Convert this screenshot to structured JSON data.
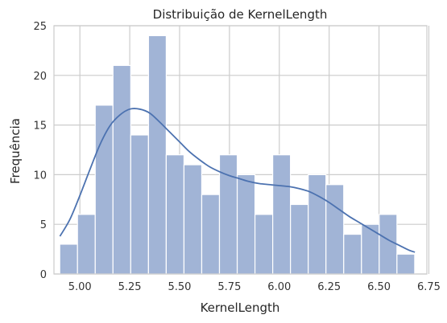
{
  "chart_data": {
    "type": "bar",
    "subtype": "histogram-with-kde",
    "title": "Distribuição de KernelLength",
    "xlabel": "KernelLength",
    "ylabel": "Frequência",
    "xlim": [
      4.87,
      6.74
    ],
    "ylim": [
      0,
      25
    ],
    "xticks": [
      5.0,
      5.25,
      5.5,
      5.75,
      6.0,
      6.25,
      6.5,
      6.75
    ],
    "xtick_labels": [
      "5.00",
      "5.25",
      "5.50",
      "5.75",
      "6.00",
      "6.25",
      "6.50",
      "6.75"
    ],
    "yticks": [
      0,
      5,
      10,
      15,
      20,
      25
    ],
    "ytick_labels": [
      "0",
      "5",
      "10",
      "15",
      "20",
      "25"
    ],
    "grid": true,
    "bar_color": "#a1b4d6",
    "line_color": "#4c72b0",
    "bins": [
      {
        "x0": 4.899,
        "x1": 4.988,
        "count": 3
      },
      {
        "x0": 4.988,
        "x1": 5.077,
        "count": 6
      },
      {
        "x0": 5.077,
        "x1": 5.166,
        "count": 17
      },
      {
        "x0": 5.166,
        "x1": 5.255,
        "count": 21
      },
      {
        "x0": 5.255,
        "x1": 5.344,
        "count": 14
      },
      {
        "x0": 5.344,
        "x1": 5.433,
        "count": 24
      },
      {
        "x0": 5.433,
        "x1": 5.522,
        "count": 12
      },
      {
        "x0": 5.522,
        "x1": 5.611,
        "count": 11
      },
      {
        "x0": 5.611,
        "x1": 5.7,
        "count": 8
      },
      {
        "x0": 5.7,
        "x1": 5.789,
        "count": 12
      },
      {
        "x0": 5.789,
        "x1": 5.878,
        "count": 10
      },
      {
        "x0": 5.878,
        "x1": 5.967,
        "count": 6
      },
      {
        "x0": 5.967,
        "x1": 6.056,
        "count": 12
      },
      {
        "x0": 6.056,
        "x1": 6.145,
        "count": 7
      },
      {
        "x0": 6.145,
        "x1": 6.234,
        "count": 10
      },
      {
        "x0": 6.234,
        "x1": 6.323,
        "count": 9
      },
      {
        "x0": 6.323,
        "x1": 6.412,
        "count": 4
      },
      {
        "x0": 6.412,
        "x1": 6.501,
        "count": 5
      },
      {
        "x0": 6.501,
        "x1": 6.59,
        "count": 6
      },
      {
        "x0": 6.59,
        "x1": 6.679,
        "count": 2
      }
    ],
    "kde": {
      "x": [
        4.9,
        4.95,
        5.0,
        5.05,
        5.1,
        5.15,
        5.2,
        5.25,
        5.3,
        5.35,
        5.4,
        5.45,
        5.5,
        5.55,
        5.6,
        5.65,
        5.7,
        5.75,
        5.8,
        5.85,
        5.9,
        5.95,
        6.0,
        6.05,
        6.1,
        6.15,
        6.2,
        6.25,
        6.3,
        6.35,
        6.4,
        6.45,
        6.5,
        6.55,
        6.6,
        6.65,
        6.68
      ],
      "y": [
        3.8,
        5.5,
        7.9,
        10.5,
        13.0,
        14.9,
        16.0,
        16.6,
        16.6,
        16.2,
        15.3,
        14.3,
        13.3,
        12.3,
        11.5,
        10.8,
        10.3,
        9.9,
        9.6,
        9.3,
        9.1,
        9.0,
        8.9,
        8.8,
        8.6,
        8.3,
        7.8,
        7.2,
        6.5,
        5.8,
        5.2,
        4.6,
        4.0,
        3.4,
        2.9,
        2.4,
        2.2
      ]
    }
  }
}
